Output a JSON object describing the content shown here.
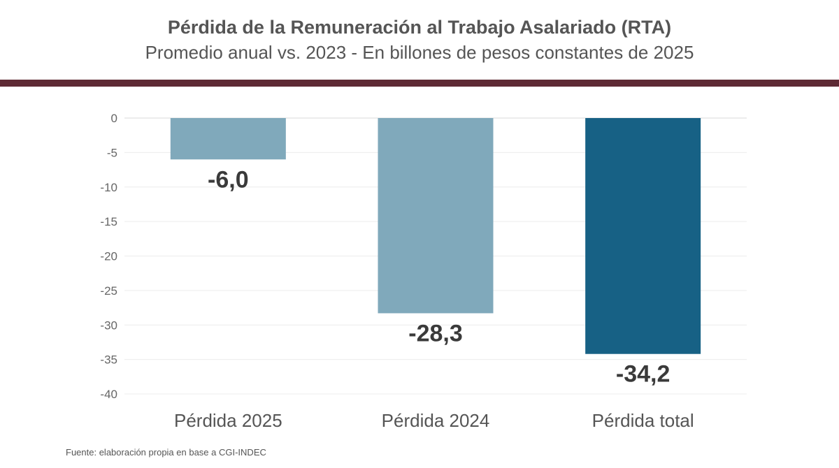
{
  "header": {
    "title": "Pérdida de la Remuneración al Trabajo Asalariado (RTA)",
    "subtitle": "Promedio anual vs. 2023 - En billones de pesos constantes de 2025"
  },
  "footer": {
    "source": "Fuente: elaboración propia en base a CGI-INDEC"
  },
  "colors": {
    "light_bar": "#80a9bb",
    "dark_bar": "#176185",
    "rule": "#5e2a34",
    "text": "#555555"
  },
  "chart_data": {
    "type": "bar",
    "categories": [
      "Pérdida 2025",
      "Pérdida 2024",
      "Pérdida total"
    ],
    "values": [
      -6.0,
      -28.3,
      -34.2
    ],
    "value_labels": [
      "-6,0",
      "-28,3",
      "-34,2"
    ],
    "bar_colors": [
      "#80a9bb",
      "#80a9bb",
      "#176185"
    ],
    "ylim": [
      -40,
      0
    ],
    "yticks": [
      0,
      -5,
      -10,
      -15,
      -20,
      -25,
      -30,
      -35,
      -40
    ],
    "grid": true,
    "legend": "none",
    "xlabel": "",
    "ylabel": ""
  }
}
